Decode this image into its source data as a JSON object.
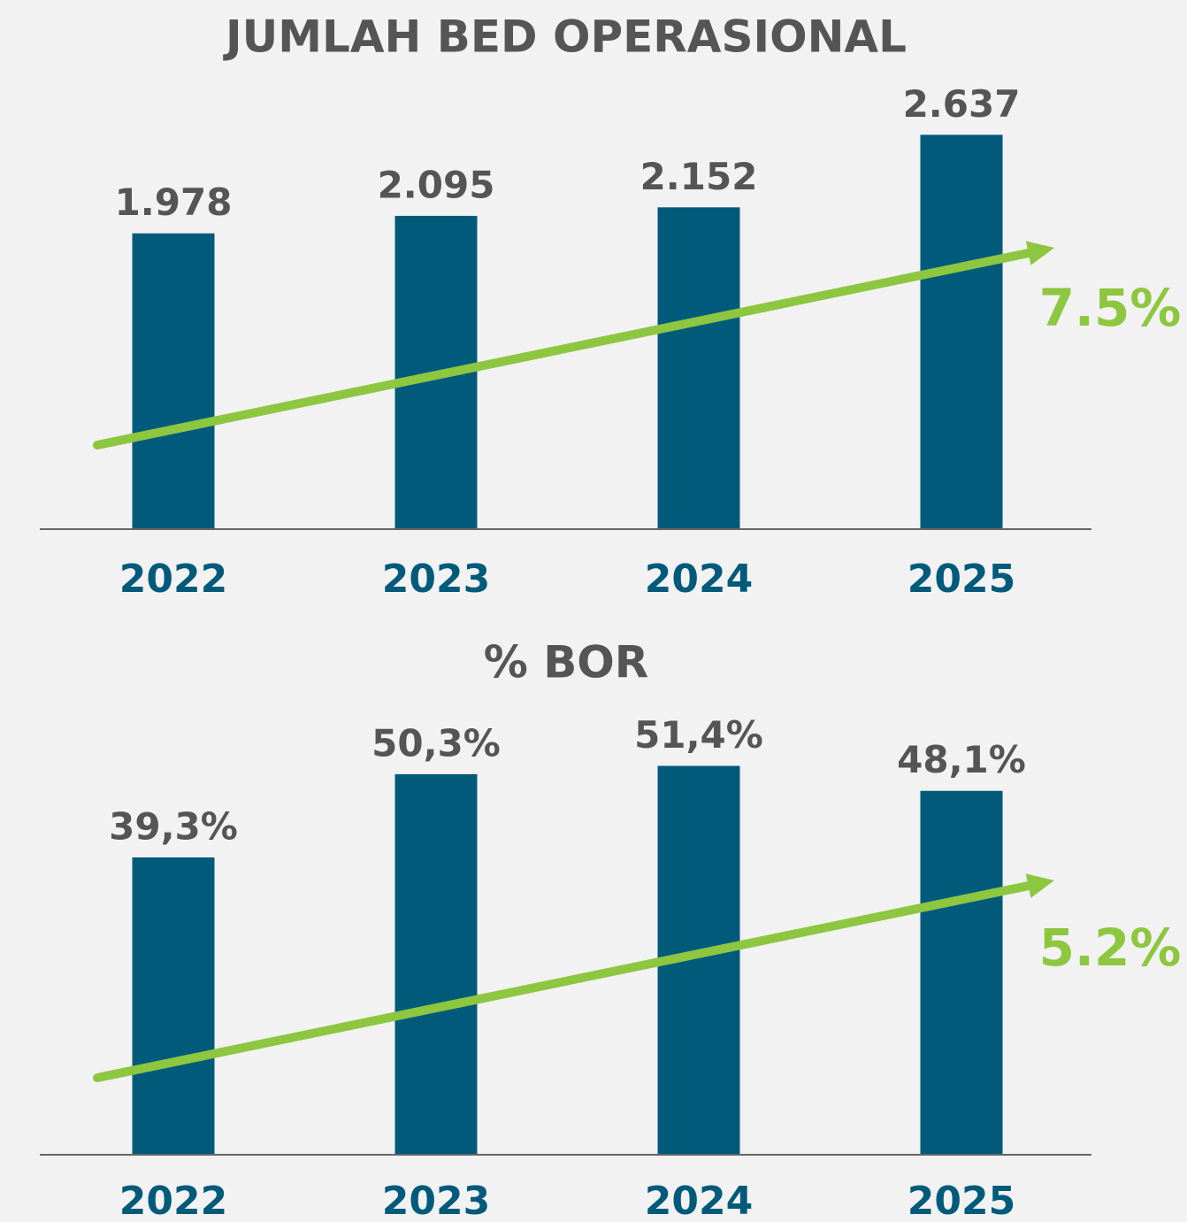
{
  "chart_data": [
    {
      "type": "bar",
      "title": "JUMLAH BED OPERASIONAL",
      "categories": [
        "2022",
        "2023",
        "2024",
        "2025"
      ],
      "values": [
        1978,
        2095,
        2152,
        2637
      ],
      "value_labels": [
        "1.978",
        "2.095",
        "2.152",
        "2.637"
      ],
      "color": "#025a7b",
      "ylim": [
        0,
        3000
      ],
      "annotation": "7.5%",
      "annotation_color": "#8dc63f"
    },
    {
      "type": "bar",
      "title": "% BOR",
      "categories": [
        "2022",
        "2023",
        "2024",
        "2025"
      ],
      "values": [
        39.3,
        50.3,
        51.4,
        48.1
      ],
      "value_labels": [
        "39,3%",
        "50,3%",
        "51,4%",
        "48,1%"
      ],
      "color": "#025a7b",
      "ylim": [
        0,
        60
      ],
      "annotation": "5.2%",
      "annotation_color": "#8dc63f"
    }
  ]
}
